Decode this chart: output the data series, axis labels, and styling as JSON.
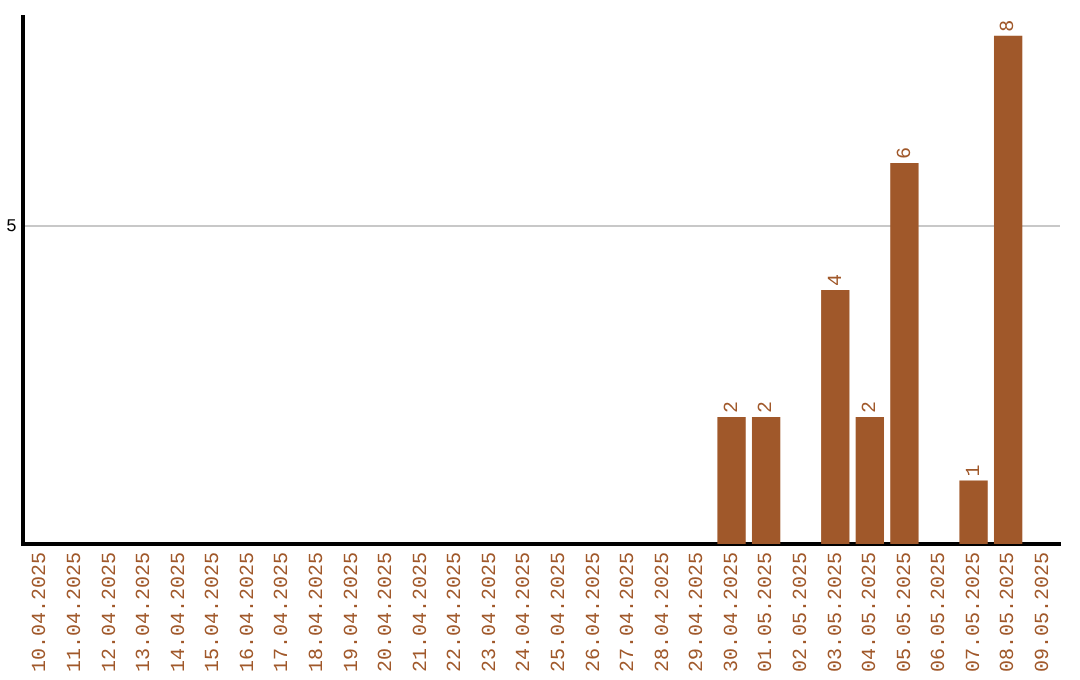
{
  "chart_data": {
    "type": "bar",
    "categories": [
      "10.04.2025",
      "11.04.2025",
      "12.04.2025",
      "13.04.2025",
      "14.04.2025",
      "15.04.2025",
      "16.04.2025",
      "17.04.2025",
      "18.04.2025",
      "19.04.2025",
      "20.04.2025",
      "21.04.2025",
      "22.04.2025",
      "23.04.2025",
      "24.04.2025",
      "25.04.2025",
      "26.04.2025",
      "27.04.2025",
      "28.04.2025",
      "29.04.2025",
      "30.04.2025",
      "01.05.2025",
      "02.05.2025",
      "03.05.2025",
      "04.05.2025",
      "05.05.2025",
      "06.05.2025",
      "07.05.2025",
      "08.05.2025",
      "09.05.2025"
    ],
    "values": [
      null,
      null,
      null,
      null,
      null,
      null,
      null,
      null,
      null,
      null,
      null,
      null,
      null,
      null,
      null,
      null,
      null,
      null,
      null,
      null,
      2,
      2,
      null,
      4,
      2,
      6,
      null,
      1,
      8,
      null
    ],
    "color": "#a0582a",
    "ylim": [
      0,
      8.3
    ],
    "yticks": [
      5
    ],
    "grid": "y",
    "legend": false,
    "data_labels": true
  }
}
